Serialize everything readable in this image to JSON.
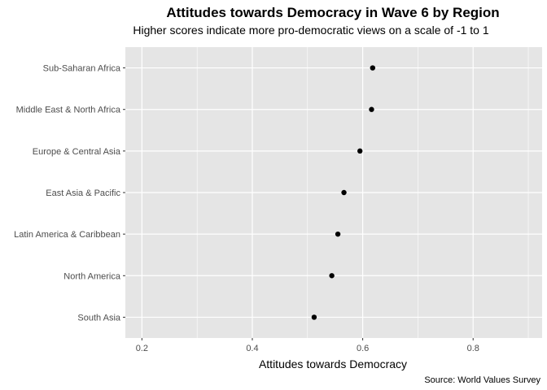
{
  "chart_data": {
    "type": "scatter",
    "title": "Attitudes towards Democracy in Wave 6 by Region",
    "subtitle": "Higher scores indicate more pro-democratic views on a scale of -1 to 1",
    "xlabel": "Attitudes towards Democracy",
    "ylabel": "",
    "caption": "Source: World Values Survey",
    "xlim": [
      0.17,
      0.925
    ],
    "x_ticks": [
      0.2,
      0.4,
      0.6,
      0.8
    ],
    "x_tick_labels": [
      "0.2",
      "0.4",
      "0.6",
      "0.8"
    ],
    "categories": [
      "Sub-Saharan Africa",
      "Middle East & North Africa",
      "Europe & Central Asia",
      "East Asia & Pacific",
      "Latin America & Caribbean",
      "North America",
      "South Asia"
    ],
    "values": [
      0.618,
      0.616,
      0.595,
      0.566,
      0.555,
      0.544,
      0.512
    ],
    "grid": true,
    "panel_background": "#e5e5e5",
    "grid_color": "#ffffff",
    "point_color": "#000000"
  }
}
